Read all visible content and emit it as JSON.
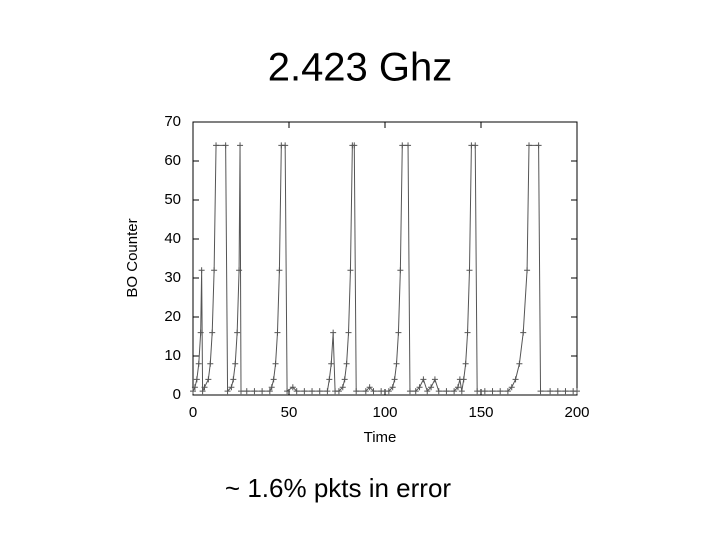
{
  "chart_data": {
    "type": "line",
    "title": "2.423 Ghz",
    "x_label": "Time",
    "y_label": "BO Counter",
    "annotation": "~ 1.6% pkts in error",
    "x": [
      0,
      1,
      2,
      3,
      4,
      4.5,
      5,
      6,
      8,
      9,
      10,
      11,
      12,
      17,
      18,
      20,
      21,
      22,
      23,
      24,
      24.5,
      25,
      28,
      32,
      36,
      40,
      41,
      42,
      43,
      44,
      45,
      46,
      48,
      49,
      52,
      54,
      58,
      62,
      66,
      70,
      71,
      72,
      73,
      74,
      76,
      78,
      79,
      80,
      81,
      82,
      83,
      84,
      85,
      90,
      92,
      94,
      98,
      102,
      104,
      105,
      106,
      107,
      108,
      109,
      112,
      113,
      116,
      118,
      120,
      122,
      124,
      126,
      128,
      132,
      136,
      138,
      139,
      140,
      141,
      142,
      143,
      144,
      145,
      147,
      148,
      152,
      156,
      160,
      164,
      166,
      168,
      170,
      172,
      174,
      175,
      180,
      181,
      186,
      190,
      194,
      198,
      200
    ],
    "series": [
      {
        "color": "#555555",
        "values": [
          1,
          2,
          4,
          8,
          16,
          32,
          1,
          2,
          4,
          8,
          16,
          32,
          64,
          64,
          1,
          2,
          4,
          8,
          16,
          32,
          64,
          1,
          1,
          1,
          1,
          1,
          2,
          4,
          8,
          16,
          32,
          64,
          64,
          1,
          2,
          1,
          1,
          1,
          1,
          1,
          4,
          8,
          16,
          1,
          1,
          2,
          4,
          8,
          16,
          32,
          64,
          64,
          1,
          1,
          2,
          1,
          1,
          1,
          2,
          4,
          8,
          16,
          32,
          64,
          64,
          1,
          1,
          2,
          4,
          1,
          2,
          4,
          1,
          1,
          1,
          2,
          4,
          1,
          4,
          8,
          16,
          32,
          64,
          64,
          1,
          1,
          1,
          1,
          1,
          2,
          4,
          8,
          16,
          32,
          64,
          64,
          1,
          1,
          1,
          1,
          1,
          1
        ]
      }
    ],
    "xlim": [
      0,
      200
    ],
    "ylim": [
      0,
      70
    ],
    "xticks": [
      0,
      50,
      100,
      150,
      200
    ],
    "yticks": [
      0,
      10,
      20,
      30,
      40,
      50,
      60,
      70
    ]
  }
}
